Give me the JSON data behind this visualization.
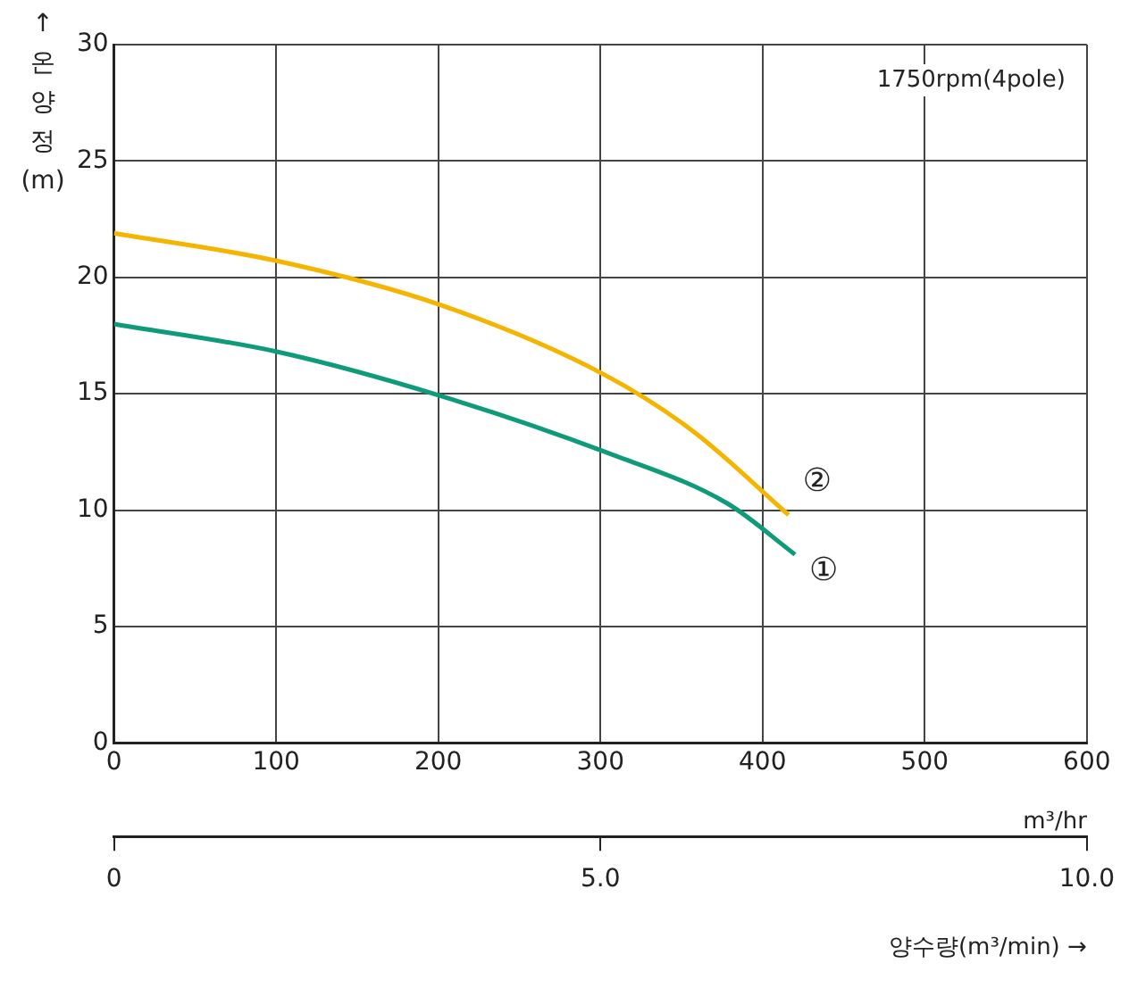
{
  "chart_data": {
    "type": "line",
    "ylabel": "↑ 온 양 정 (m)",
    "xlabel": "m³/hr",
    "x2label": "양수량(m³/min) →",
    "xlim": [
      0,
      600
    ],
    "xticks": [
      0,
      100,
      200,
      300,
      400,
      500,
      600
    ],
    "x2lim": [
      0,
      10
    ],
    "x2ticks": [
      0,
      {
        "value": 5,
        "label": "5.0"
      },
      {
        "value": 10,
        "label": "10.0"
      }
    ],
    "ylim": [
      0,
      30
    ],
    "yticks": [
      0,
      5,
      10,
      15,
      20,
      25,
      30
    ],
    "grid": true,
    "legend": false,
    "marker": "none",
    "line_style": "solid",
    "series": [
      {
        "name": "①",
        "color": "#0f9b7a",
        "x": [
          0,
          101,
          202,
          303,
          378,
          420
        ],
        "values": [
          18.0,
          16.8,
          14.9,
          12.5,
          10.3,
          8.1
        ]
      },
      {
        "name": "②",
        "color": "#f5b400",
        "x": [
          0,
          101,
          202,
          303,
          357,
          416
        ],
        "values": [
          21.9,
          20.7,
          18.8,
          15.8,
          13.4,
          9.8
        ]
      }
    ],
    "annotations": [
      "1750rpm(4pole)"
    ]
  }
}
